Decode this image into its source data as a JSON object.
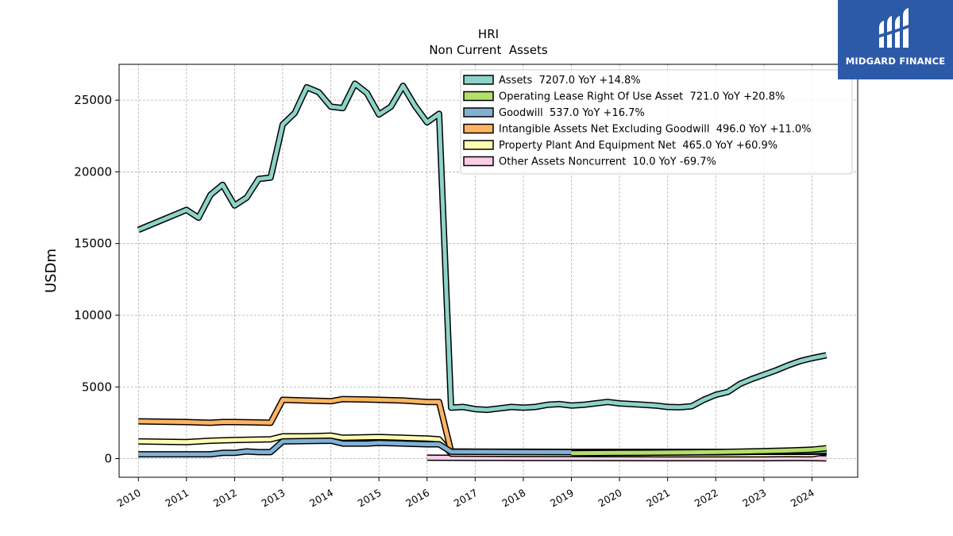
{
  "brand": {
    "name": "MIDGARD FINANCE"
  },
  "chart_data": {
    "type": "line",
    "title": "HRI",
    "subtitle": "Non Current  Assets",
    "ylabel": "USDm",
    "xlabel": "",
    "xlim": [
      2009.6,
      2024.95
    ],
    "ylim": [
      -1300,
      27500
    ],
    "yticks": [
      0,
      5000,
      10000,
      15000,
      20000,
      25000
    ],
    "xticks": [
      "2010",
      "2011",
      "2012",
      "2013",
      "2014",
      "2015",
      "2016",
      "2017",
      "2018",
      "2019",
      "2020",
      "2021",
      "2022",
      "2023",
      "2024"
    ],
    "grid": true,
    "legend_position": "top-right",
    "series": [
      {
        "name": "Assets  7207.0 YoY +14.8%",
        "color": "#8dd3c7",
        "x": [
          2010.0,
          2011.0,
          2011.25,
          2011.5,
          2011.75,
          2012.0,
          2012.25,
          2012.5,
          2012.75,
          2013.0,
          2013.25,
          2013.5,
          2013.75,
          2014.0,
          2014.25,
          2014.5,
          2014.75,
          2015.0,
          2015.25,
          2015.5,
          2015.75,
          2016.0,
          2016.25,
          2016.5,
          2016.75,
          2017.0,
          2017.25,
          2017.5,
          2017.75,
          2018.0,
          2018.25,
          2018.5,
          2018.75,
          2019.0,
          2019.25,
          2019.5,
          2019.75,
          2020.0,
          2020.25,
          2020.5,
          2020.75,
          2021.0,
          2021.25,
          2021.5,
          2021.75,
          2022.0,
          2022.25,
          2022.5,
          2022.75,
          2023.0,
          2023.25,
          2023.5,
          2023.75,
          2024.0,
          2024.3
        ],
        "values": [
          15950,
          17350,
          16800,
          18400,
          19100,
          17650,
          18200,
          19500,
          19600,
          23300,
          24100,
          25900,
          25550,
          24550,
          24450,
          26150,
          25500,
          24000,
          24550,
          26000,
          24600,
          23450,
          24050,
          3550,
          3600,
          3450,
          3400,
          3500,
          3600,
          3550,
          3600,
          3750,
          3800,
          3700,
          3750,
          3850,
          3950,
          3850,
          3800,
          3750,
          3700,
          3600,
          3580,
          3650,
          4100,
          4450,
          4650,
          5200,
          5550,
          5850,
          6150,
          6500,
          6800,
          7000,
          7207
        ]
      },
      {
        "name": "Operating Lease Right Of Use Asset  721.0 YoY +20.8%",
        "color": "#b3de69",
        "x": [
          2019.0,
          2019.5,
          2020.0,
          2020.5,
          2021.0,
          2021.5,
          2022.0,
          2022.5,
          2023.0,
          2023.5,
          2024.0,
          2024.3
        ],
        "values": [
          380,
          390,
          400,
          410,
          420,
          440,
          460,
          490,
          520,
          560,
          620,
          721
        ]
      },
      {
        "name": "Goodwill  537.0 YoY +16.7%",
        "color": "#80b1d3",
        "x": [
          2010.0,
          2011.0,
          2011.5,
          2011.75,
          2012.0,
          2012.25,
          2012.5,
          2012.75,
          2013.0,
          2014.0,
          2014.25,
          2014.75,
          2015.0,
          2016.0,
          2016.25,
          2016.5,
          2017.0,
          2018.0,
          2019.0,
          2020.0,
          2021.0,
          2022.0,
          2022.5,
          2023.0,
          2023.5,
          2024.0,
          2024.3
        ],
        "values": [
          300,
          300,
          300,
          400,
          400,
          500,
          450,
          450,
          1200,
          1250,
          1050,
          1050,
          1100,
          1000,
          1000,
          480,
          470,
          460,
          450,
          440,
          430,
          440,
          460,
          480,
          500,
          510,
          537
        ]
      },
      {
        "name": "Intangible Assets Net Excluding Goodwill  496.0 YoY +11.0%",
        "color": "#fdb462",
        "x": [
          2010.0,
          2011.0,
          2011.5,
          2011.75,
          2012.0,
          2012.5,
          2012.75,
          2013.0,
          2013.5,
          2014.0,
          2014.25,
          2014.75,
          2015.0,
          2015.5,
          2016.0,
          2016.25,
          2016.5,
          2017.0,
          2018.0,
          2019.0,
          2020.0,
          2021.0,
          2022.0,
          2023.0,
          2024.0,
          2024.3
        ],
        "values": [
          2600,
          2550,
          2500,
          2550,
          2550,
          2520,
          2500,
          4100,
          4050,
          4000,
          4150,
          4120,
          4100,
          4050,
          3950,
          3950,
          500,
          490,
          480,
          470,
          470,
          470,
          470,
          470,
          470,
          496
        ]
      },
      {
        "name": "Property Plant And Equipment Net  465.0 YoY +60.9%",
        "color": "#ffffb3",
        "x": [
          2010.0,
          2011.0,
          2011.5,
          2012.0,
          2012.75,
          2013.0,
          2013.5,
          2014.0,
          2014.25,
          2015.0,
          2015.5,
          2016.0,
          2016.25,
          2016.5,
          2017.0,
          2018.0,
          2019.0,
          2020.0,
          2021.0,
          2022.0,
          2023.0,
          2023.5,
          2024.0,
          2024.3
        ],
        "values": [
          1200,
          1150,
          1250,
          1300,
          1350,
          1550,
          1550,
          1600,
          1450,
          1500,
          1450,
          1400,
          1350,
          350,
          340,
          330,
          320,
          310,
          300,
          300,
          300,
          310,
          300,
          465
        ]
      },
      {
        "name": "Other Assets Noncurrent  10.0 YoY -69.7%",
        "color": "#fccde5",
        "x": [
          2016.0,
          2017.0,
          2018.0,
          2019.0,
          2020.0,
          2021.0,
          2022.0,
          2023.0,
          2023.75,
          2024.0,
          2024.3
        ],
        "values": [
          60,
          50,
          45,
          40,
          35,
          30,
          28,
          30,
          40,
          33,
          10
        ]
      }
    ]
  }
}
